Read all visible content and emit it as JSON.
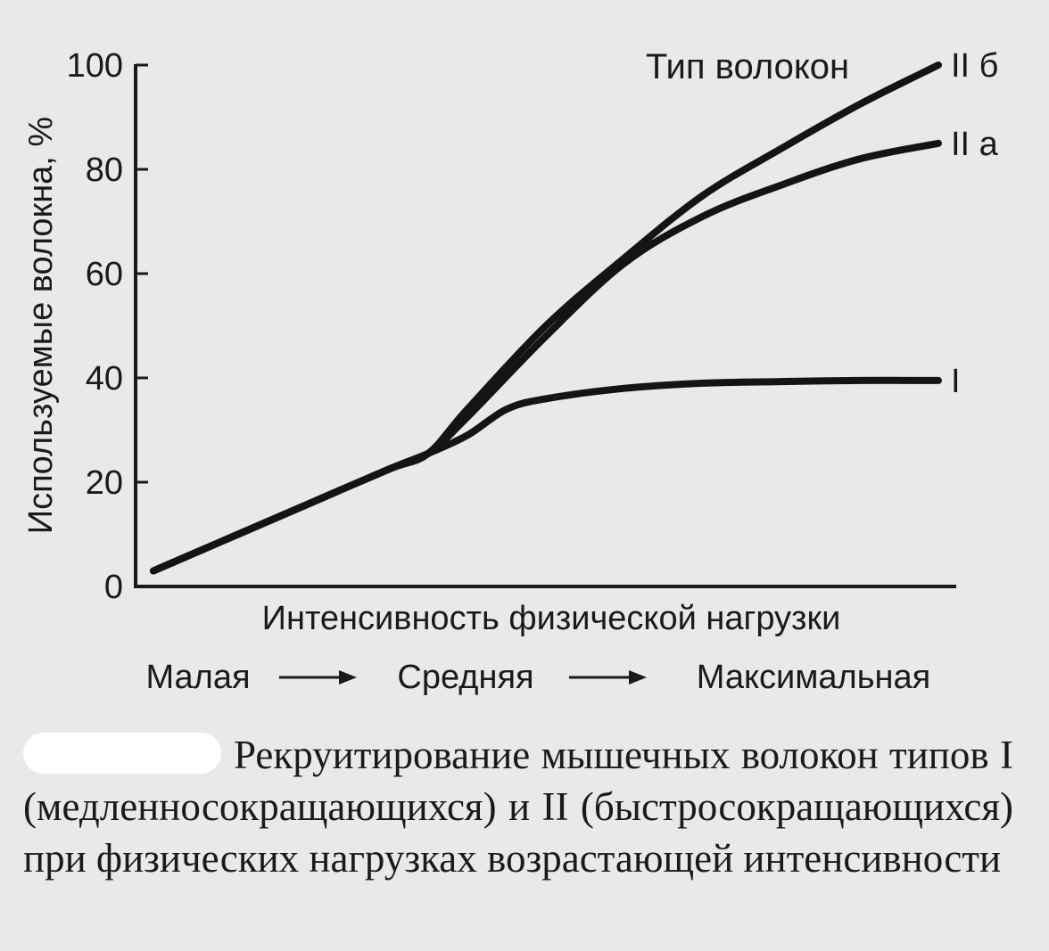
{
  "chart_data": {
    "type": "line",
    "ylabel": "Используемые волокна, %",
    "xlabel": "Интенсивность физической нагрузки",
    "ylim": [
      0,
      100
    ],
    "yticks": [
      "0",
      "20",
      "40",
      "60",
      "80",
      "100"
    ],
    "xlim": [
      0,
      1
    ],
    "legend_title": "Тип волокон",
    "x_scale": {
      "labels": [
        "Малая",
        "Средняя",
        "Максимальная"
      ],
      "arrows": "→"
    },
    "series": [
      {
        "name": "II б",
        "x": [
          0,
          0.1,
          0.2,
          0.3,
          0.35,
          0.4,
          0.5,
          0.6,
          0.7,
          0.8,
          0.9,
          1.0
        ],
        "y": [
          3,
          9.5,
          16,
          22.5,
          25.5,
          34,
          50,
          63,
          75,
          84,
          92.5,
          100
        ]
      },
      {
        "name": "II a",
        "x": [
          0,
          0.1,
          0.2,
          0.3,
          0.35,
          0.4,
          0.5,
          0.6,
          0.7,
          0.8,
          0.9,
          1.0
        ],
        "y": [
          3,
          9.5,
          16,
          22.5,
          25.5,
          32.5,
          48,
          62,
          71,
          77,
          82,
          85
        ]
      },
      {
        "name": "I",
        "x": [
          0,
          0.1,
          0.2,
          0.3,
          0.35,
          0.4,
          0.45,
          0.5,
          0.6,
          0.7,
          0.8,
          0.9,
          1.0
        ],
        "y": [
          3,
          9.5,
          16,
          22.5,
          25.5,
          29,
          34,
          36,
          38,
          39,
          39.3,
          39.5,
          39.5
        ]
      }
    ]
  },
  "caption": {
    "text": "Рекруитирование мышечных волокон типов I (медленносокращающихся) и II (быстросокращающихся) при физических нагрузках возрастающей интенсивности"
  }
}
